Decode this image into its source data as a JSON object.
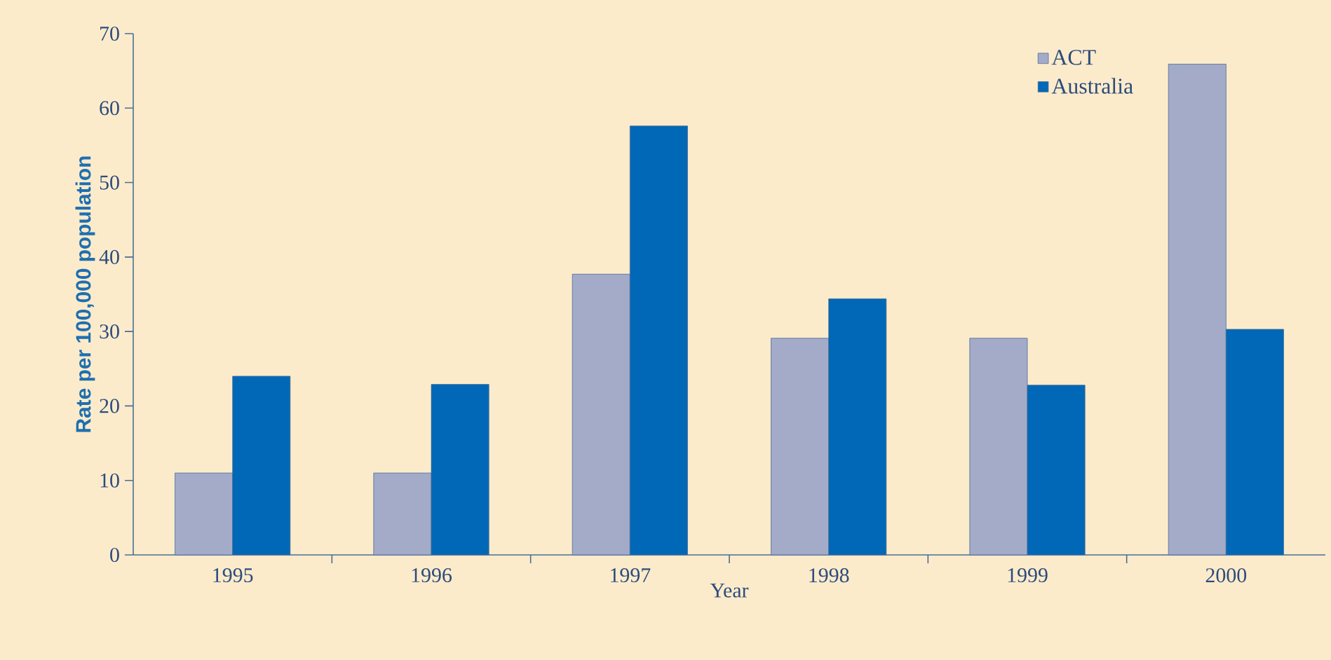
{
  "chart_data": {
    "type": "bar",
    "xlabel": "Year",
    "ylabel": "Rate per 100,000 population",
    "categories": [
      "1995",
      "1996",
      "1997",
      "1998",
      "1999",
      "2000"
    ],
    "series": [
      {
        "name": "ACT",
        "color": "#a3abc9",
        "values": [
          11,
          11,
          37.7,
          29.1,
          29.1,
          65.9
        ]
      },
      {
        "name": "Australia",
        "color": "#0068b6",
        "values": [
          24,
          22.9,
          57.6,
          34.4,
          22.8,
          30.3
        ]
      }
    ],
    "ylim": [
      0,
      70
    ],
    "yticks": [
      0,
      10,
      20,
      30,
      40,
      50,
      60,
      70
    ],
    "legend": "top right",
    "grid": false
  }
}
